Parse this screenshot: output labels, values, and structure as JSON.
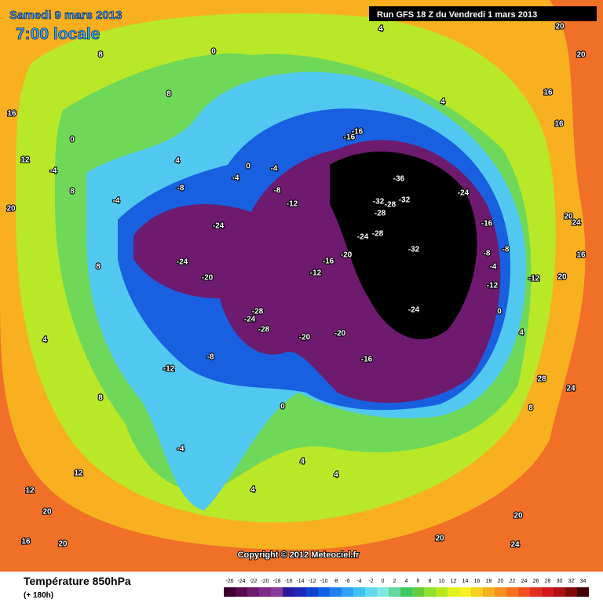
{
  "header": {
    "date": "Samedi 9 mars 2013",
    "time": "7:00 locale",
    "run": "Run GFS 18 Z du Vendredi 1 mars 2013"
  },
  "copyright": "Copyright © 2012 Meteociel.fr",
  "footer": {
    "title": "Température 850hPa",
    "subtitle": "(+ 180h)"
  },
  "legend": {
    "values": [
      -26,
      -24,
      -22,
      -20,
      -18,
      -16,
      -14,
      -12,
      -10,
      -8,
      -6,
      -4,
      -2,
      0,
      2,
      4,
      6,
      8,
      10,
      12,
      14,
      16,
      18,
      20,
      22,
      24,
      26,
      28,
      30,
      32,
      34
    ],
    "colors": [
      "#3d0030",
      "#5a0a50",
      "#6e1a6e",
      "#7f2a88",
      "#8a3a9a",
      "#2a1aa0",
      "#1a2ab8",
      "#1040d0",
      "#1060e8",
      "#2080f0",
      "#30a0f8",
      "#40c0f8",
      "#60d8f0",
      "#80e8e0",
      "#60d8a0",
      "#40c860",
      "#60d040",
      "#90e030",
      "#b8e820",
      "#e0f020",
      "#f8f020",
      "#f8d020",
      "#f8b020",
      "#f89020",
      "#f87020",
      "#f05020",
      "#e03020",
      "#d01818",
      "#b01010",
      "#800808",
      "#400000"
    ]
  },
  "map_labels": [
    "-36",
    "-32",
    "-28",
    "-32",
    "-28",
    "-28",
    "-24",
    "-32",
    "-24",
    "-16",
    "-24",
    "-24",
    "-20",
    "-16",
    "-20",
    "-12",
    "-12",
    "-8",
    "-16",
    "-16",
    "-28",
    "-28",
    "-24",
    "-20",
    "-20",
    "-24",
    "-16",
    "-12",
    "-4",
    "0",
    "4",
    "8",
    "12",
    "16",
    "20",
    "20",
    "16",
    "20",
    "-12",
    "0",
    "4",
    "8",
    "24",
    "20",
    "20",
    "4",
    "4",
    "-4",
    "8",
    "12",
    "-4",
    "8",
    "4",
    "-8",
    "0",
    "0",
    "8",
    "8",
    "4",
    "4",
    "20",
    "16",
    "16",
    "20",
    "24",
    "-8",
    "-8",
    "-4",
    "-12",
    "4",
    "-4",
    "0",
    "-4",
    "-8",
    "28",
    "24",
    "20",
    "16",
    "20",
    "12"
  ]
}
